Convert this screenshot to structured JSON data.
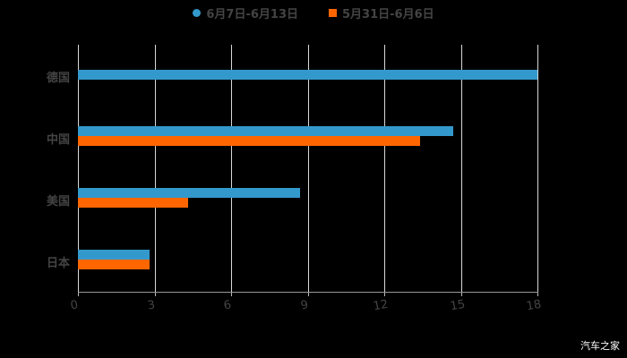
{
  "chart_data": {
    "type": "bar",
    "orientation": "horizontal",
    "title": "",
    "categories": [
      "德国",
      "中国",
      "美国",
      "日本"
    ],
    "series": [
      {
        "name": "6月7日-6月13日",
        "color": "#3399cc",
        "values": [
          18,
          14.7,
          8.7,
          2.8
        ]
      },
      {
        "name": "5月31日-6月6日",
        "color": "#ff6600",
        "values": [
          null,
          13.4,
          4.3,
          2.8
        ]
      }
    ],
    "xlabel": "",
    "ylabel": "",
    "xlim": [
      0,
      18
    ],
    "xticks": [
      "0",
      "3",
      "6",
      "9",
      "12",
      "15",
      "18"
    ],
    "grid": true,
    "legend_position": "top"
  },
  "legend": [
    {
      "label": "6月7日-6月13日",
      "color": "#3399cc"
    },
    {
      "label": "5月31日-6月6日",
      "color": "#ff6600"
    }
  ],
  "watermark": "汽车之家"
}
